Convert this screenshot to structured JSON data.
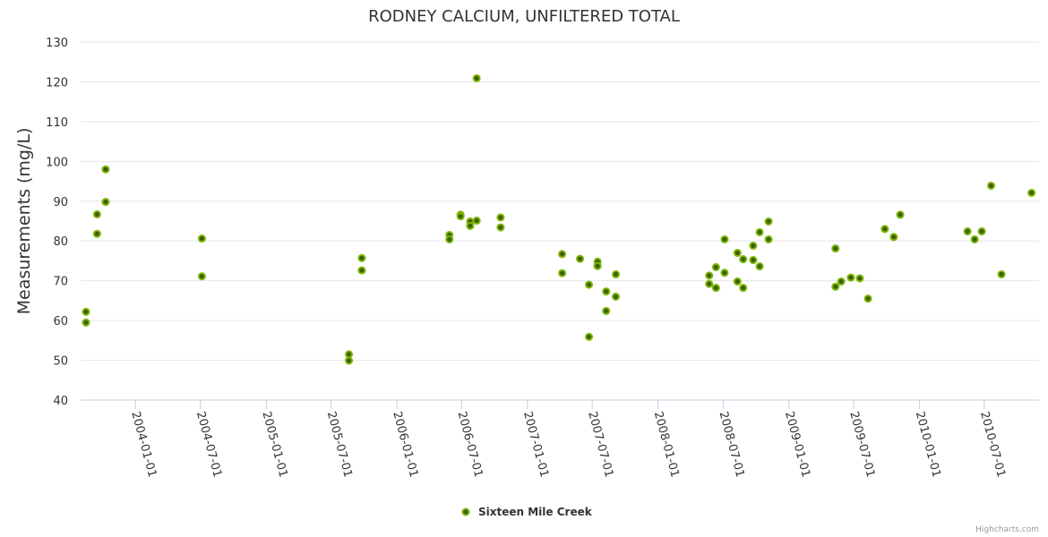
{
  "chart_data": {
    "type": "scatter",
    "title": "RODNEY CALCIUM, UNFILTERED TOTAL",
    "xlabel": "",
    "ylabel": "Measurements (mg/L)",
    "ylim": [
      40,
      130
    ],
    "yticks": [
      40,
      50,
      60,
      70,
      80,
      90,
      100,
      110,
      120,
      130
    ],
    "xlim": [
      "2003-08-01",
      "2010-12-01"
    ],
    "xticks": [
      "2004-01-01",
      "2004-07-01",
      "2005-01-01",
      "2005-07-01",
      "2006-01-01",
      "2006-07-01",
      "2007-01-01",
      "2007-07-01",
      "2008-01-01",
      "2008-07-01",
      "2009-01-01",
      "2009-07-01",
      "2010-01-01",
      "2010-07-01"
    ],
    "grid": true,
    "legend_position": "bottom-center",
    "credits": "Highcharts.com",
    "series": [
      {
        "name": "Sixteen Mile Creek",
        "color": "#7cb500",
        "points": [
          {
            "x": "2003-08-16",
            "y": 62.2
          },
          {
            "x": "2003-08-16",
            "y": 59.5
          },
          {
            "x": "2003-09-16",
            "y": 86.7
          },
          {
            "x": "2003-09-16",
            "y": 81.8
          },
          {
            "x": "2003-10-10",
            "y": 98.0
          },
          {
            "x": "2003-10-10",
            "y": 89.8
          },
          {
            "x": "2004-07-05",
            "y": 80.6
          },
          {
            "x": "2004-07-05",
            "y": 71.1
          },
          {
            "x": "2005-08-20",
            "y": 51.5
          },
          {
            "x": "2005-08-20",
            "y": 49.9
          },
          {
            "x": "2005-09-25",
            "y": 75.7
          },
          {
            "x": "2005-09-25",
            "y": 72.6
          },
          {
            "x": "2006-05-28",
            "y": 81.5
          },
          {
            "x": "2006-05-28",
            "y": 80.4
          },
          {
            "x": "2006-06-28",
            "y": 86.6
          },
          {
            "x": "2006-06-28",
            "y": 86.2
          },
          {
            "x": "2006-07-25",
            "y": 84.9
          },
          {
            "x": "2006-07-25",
            "y": 83.8
          },
          {
            "x": "2006-08-12",
            "y": 120.9
          },
          {
            "x": "2006-08-12",
            "y": 85.1
          },
          {
            "x": "2006-10-18",
            "y": 85.9
          },
          {
            "x": "2006-10-18",
            "y": 83.4
          },
          {
            "x": "2007-04-08",
            "y": 76.7
          },
          {
            "x": "2007-04-08",
            "y": 71.9
          },
          {
            "x": "2007-05-28",
            "y": 75.5
          },
          {
            "x": "2007-06-22",
            "y": 69.0
          },
          {
            "x": "2007-06-22",
            "y": 55.9
          },
          {
            "x": "2007-07-16",
            "y": 74.8
          },
          {
            "x": "2007-07-16",
            "y": 73.7
          },
          {
            "x": "2007-08-09",
            "y": 67.3
          },
          {
            "x": "2007-08-09",
            "y": 62.4
          },
          {
            "x": "2007-09-05",
            "y": 71.6
          },
          {
            "x": "2007-09-05",
            "y": 66.0
          },
          {
            "x": "2008-05-23",
            "y": 71.3
          },
          {
            "x": "2008-05-23",
            "y": 69.2
          },
          {
            "x": "2008-06-11",
            "y": 73.4
          },
          {
            "x": "2008-06-11",
            "y": 68.2
          },
          {
            "x": "2008-07-05",
            "y": 80.4
          },
          {
            "x": "2008-07-05",
            "y": 72.0
          },
          {
            "x": "2008-08-10",
            "y": 77.0
          },
          {
            "x": "2008-08-10",
            "y": 69.8
          },
          {
            "x": "2008-08-26",
            "y": 75.4
          },
          {
            "x": "2008-08-26",
            "y": 68.2
          },
          {
            "x": "2008-09-23",
            "y": 78.8
          },
          {
            "x": "2008-09-23",
            "y": 75.2
          },
          {
            "x": "2008-10-11",
            "y": 82.2
          },
          {
            "x": "2008-10-11",
            "y": 73.6
          },
          {
            "x": "2008-11-05",
            "y": 84.9
          },
          {
            "x": "2008-11-05",
            "y": 80.4
          },
          {
            "x": "2009-05-11",
            "y": 78.1
          },
          {
            "x": "2009-05-11",
            "y": 68.5
          },
          {
            "x": "2009-05-27",
            "y": 69.8
          },
          {
            "x": "2009-06-23",
            "y": 70.8
          },
          {
            "x": "2009-07-18",
            "y": 70.6
          },
          {
            "x": "2009-08-10",
            "y": 65.5
          },
          {
            "x": "2009-09-26",
            "y": 83.0
          },
          {
            "x": "2009-10-21",
            "y": 81.0
          },
          {
            "x": "2009-11-08",
            "y": 86.6
          },
          {
            "x": "2010-05-15",
            "y": 82.4
          },
          {
            "x": "2010-06-04",
            "y": 80.4
          },
          {
            "x": "2010-06-24",
            "y": 82.4
          },
          {
            "x": "2010-07-20",
            "y": 93.9
          },
          {
            "x": "2010-08-18",
            "y": 71.6
          },
          {
            "x": "2010-11-10",
            "y": 92.1
          }
        ]
      }
    ]
  }
}
